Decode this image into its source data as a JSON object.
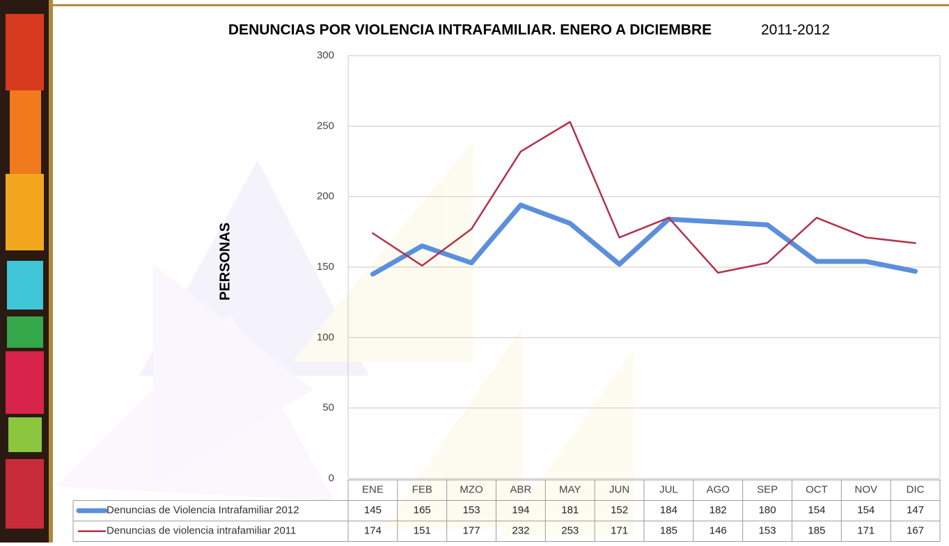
{
  "chart_data": {
    "type": "line",
    "title": "DENUNCIAS POR VIOLENCIA INTRAFAMILIAR. ENERO A DICIEMBRE",
    "subtitle": "2011-2012",
    "y_label": "PERSONAS",
    "categories": [
      "ENE",
      "FEB",
      "MZO",
      "ABR",
      "MAY",
      "JUN",
      "JUL",
      "AGO",
      "SEP",
      "OCT",
      "NOV",
      "DIC"
    ],
    "series": [
      {
        "name": "Denuncias de Violencia Intrafamiliar 2012",
        "color": "#5b8fdb",
        "values": [
          145,
          165,
          153,
          194,
          181,
          152,
          184,
          182,
          180,
          154,
          154,
          147
        ]
      },
      {
        "name": "Denuncias de violencia intrafamiliar 2011",
        "color": "#b3304c",
        "values": [
          174,
          151,
          177,
          232,
          253,
          171,
          185,
          146,
          153,
          185,
          171,
          167
        ]
      }
    ],
    "ylim": [
      0,
      300
    ],
    "yticks": [
      0,
      50,
      100,
      150,
      200,
      250,
      300
    ],
    "grid": true
  }
}
